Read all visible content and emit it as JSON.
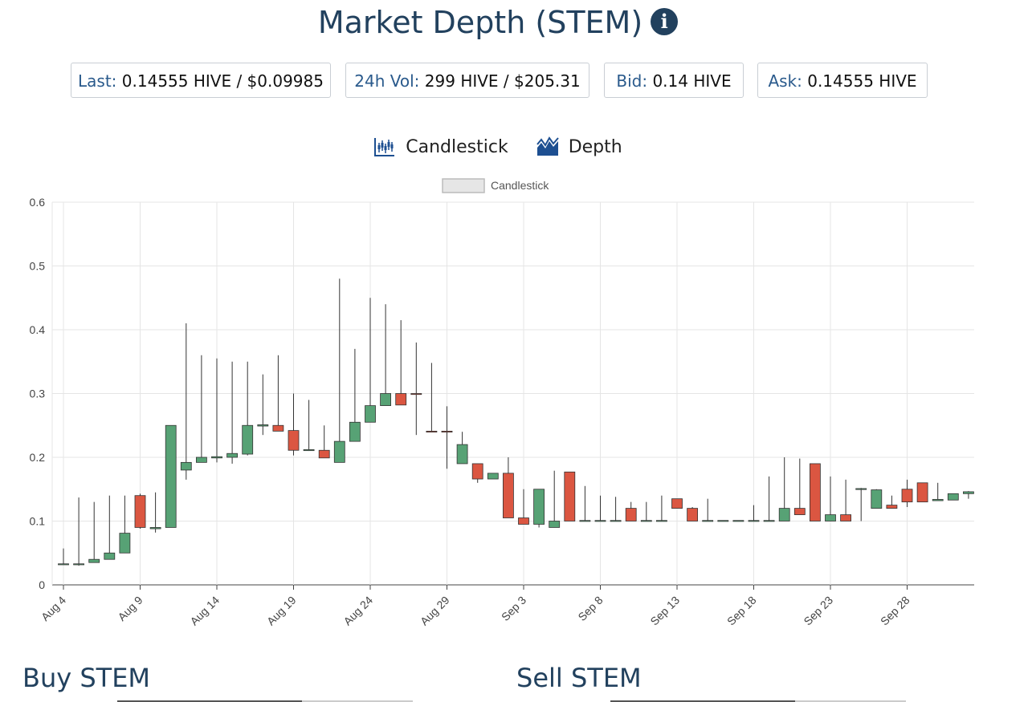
{
  "page": {
    "title": "Market Depth (STEM)",
    "info_icon": "info-circle-icon"
  },
  "stats": [
    {
      "key": "Last:",
      "value": "0.14555 HIVE / $0.09985"
    },
    {
      "key": "24h Vol:",
      "value": "299 HIVE / $205.31"
    },
    {
      "key": "Bid:",
      "value": "0.14 HIVE"
    },
    {
      "key": "Ask:",
      "value": "0.14555 HIVE"
    }
  ],
  "tabs": [
    {
      "label": "Candlestick",
      "icon": "candlestick-chart-icon"
    },
    {
      "label": "Depth",
      "icon": "depth-chart-icon"
    }
  ],
  "colors": {
    "up": "#57a275",
    "down": "#db5641",
    "grid": "#e5e5e5",
    "wick": "#333333"
  },
  "chart_data": {
    "type": "candlestick",
    "legend": "Candlestick",
    "legend_position": "top-center",
    "grid": true,
    "ylim": [
      0,
      0.6
    ],
    "yticks": [
      "0",
      "0.1",
      "0.2",
      "0.3",
      "0.4",
      "0.5",
      "0.6"
    ],
    "xticks": [
      "Aug 4",
      "Aug 9",
      "Aug 14",
      "Aug 19",
      "Aug 24",
      "Aug 29",
      "Sep 3",
      "Sep 8",
      "Sep 13",
      "Sep 18",
      "Sep 23",
      "Sep 28"
    ],
    "series": [
      {
        "values": [
          {
            "date": "Aug 4",
            "open": 0.032,
            "high": 0.057,
            "low": 0.032,
            "close": 0.033
          },
          {
            "date": "Aug 5",
            "open": 0.032,
            "high": 0.137,
            "low": 0.03,
            "close": 0.033
          },
          {
            "date": "Aug 6",
            "open": 0.035,
            "high": 0.13,
            "low": 0.035,
            "close": 0.04
          },
          {
            "date": "Aug 7",
            "open": 0.04,
            "high": 0.14,
            "low": 0.04,
            "close": 0.05
          },
          {
            "date": "Aug 8",
            "open": 0.05,
            "high": 0.14,
            "low": 0.05,
            "close": 0.081
          },
          {
            "date": "Aug 9",
            "open": 0.14,
            "high": 0.143,
            "low": 0.088,
            "close": 0.09
          },
          {
            "date": "Aug 10",
            "open": 0.088,
            "high": 0.145,
            "low": 0.082,
            "close": 0.09
          },
          {
            "date": "Aug 11",
            "open": 0.09,
            "high": 0.25,
            "low": 0.09,
            "close": 0.25
          },
          {
            "date": "Aug 12",
            "open": 0.18,
            "high": 0.41,
            "low": 0.165,
            "close": 0.192
          },
          {
            "date": "Aug 13",
            "open": 0.192,
            "high": 0.36,
            "low": 0.192,
            "close": 0.2
          },
          {
            "date": "Aug 14",
            "open": 0.199,
            "high": 0.355,
            "low": 0.192,
            "close": 0.201
          },
          {
            "date": "Aug 15",
            "open": 0.2,
            "high": 0.35,
            "low": 0.19,
            "close": 0.206
          },
          {
            "date": "Aug 16",
            "open": 0.205,
            "high": 0.35,
            "low": 0.203,
            "close": 0.25
          },
          {
            "date": "Aug 17",
            "open": 0.249,
            "high": 0.33,
            "low": 0.235,
            "close": 0.251
          },
          {
            "date": "Aug 18",
            "open": 0.25,
            "high": 0.36,
            "low": 0.241,
            "close": 0.241
          },
          {
            "date": "Aug 19",
            "open": 0.242,
            "high": 0.3,
            "low": 0.203,
            "close": 0.211
          },
          {
            "date": "Aug 20",
            "open": 0.211,
            "high": 0.29,
            "low": 0.21,
            "close": 0.212
          },
          {
            "date": "Aug 21",
            "open": 0.211,
            "high": 0.25,
            "low": 0.199,
            "close": 0.199
          },
          {
            "date": "Aug 22",
            "open": 0.192,
            "high": 0.48,
            "low": 0.192,
            "close": 0.225
          },
          {
            "date": "Aug 23",
            "open": 0.225,
            "high": 0.37,
            "low": 0.225,
            "close": 0.255
          },
          {
            "date": "Aug 24",
            "open": 0.255,
            "high": 0.45,
            "low": 0.255,
            "close": 0.281
          },
          {
            "date": "Aug 25",
            "open": 0.281,
            "high": 0.44,
            "low": 0.281,
            "close": 0.3
          },
          {
            "date": "Aug 26",
            "open": 0.3,
            "high": 0.415,
            "low": 0.282,
            "close": 0.282
          },
          {
            "date": "Aug 27",
            "open": 0.3,
            "high": 0.38,
            "low": 0.235,
            "close": 0.299
          },
          {
            "date": "Aug 28",
            "open": 0.241,
            "high": 0.348,
            "low": 0.24,
            "close": 0.24
          },
          {
            "date": "Aug 29",
            "open": 0.241,
            "high": 0.28,
            "low": 0.182,
            "close": 0.24
          },
          {
            "date": "Aug 30",
            "open": 0.19,
            "high": 0.24,
            "low": 0.19,
            "close": 0.22
          },
          {
            "date": "Aug 31",
            "open": 0.19,
            "high": 0.19,
            "low": 0.16,
            "close": 0.166
          },
          {
            "date": "Sep 1",
            "open": 0.166,
            "high": 0.175,
            "low": 0.166,
            "close": 0.175
          },
          {
            "date": "Sep 2",
            "open": 0.175,
            "high": 0.2,
            "low": 0.105,
            "close": 0.105
          },
          {
            "date": "Sep 3",
            "open": 0.105,
            "high": 0.15,
            "low": 0.095,
            "close": 0.095
          },
          {
            "date": "Sep 4",
            "open": 0.095,
            "high": 0.15,
            "low": 0.09,
            "close": 0.15
          },
          {
            "date": "Sep 5",
            "open": 0.09,
            "high": 0.179,
            "low": 0.09,
            "close": 0.1
          },
          {
            "date": "Sep 6",
            "open": 0.177,
            "high": 0.177,
            "low": 0.1,
            "close": 0.1
          },
          {
            "date": "Sep 7",
            "open": 0.1,
            "high": 0.155,
            "low": 0.1,
            "close": 0.101
          },
          {
            "date": "Sep 8",
            "open": 0.1,
            "high": 0.14,
            "low": 0.1,
            "close": 0.101
          },
          {
            "date": "Sep 9",
            "open": 0.1,
            "high": 0.138,
            "low": 0.1,
            "close": 0.101
          },
          {
            "date": "Sep 10",
            "open": 0.12,
            "high": 0.13,
            "low": 0.1,
            "close": 0.1
          },
          {
            "date": "Sep 11",
            "open": 0.1,
            "high": 0.13,
            "low": 0.1,
            "close": 0.101
          },
          {
            "date": "Sep 12",
            "open": 0.1,
            "high": 0.14,
            "low": 0.1,
            "close": 0.101
          },
          {
            "date": "Sep 13",
            "open": 0.135,
            "high": 0.135,
            "low": 0.12,
            "close": 0.12
          },
          {
            "date": "Sep 14",
            "open": 0.12,
            "high": 0.122,
            "low": 0.1,
            "close": 0.1
          },
          {
            "date": "Sep 15",
            "open": 0.1,
            "high": 0.135,
            "low": 0.1,
            "close": 0.101
          },
          {
            "date": "Sep 16",
            "open": 0.1,
            "high": 0.1,
            "low": 0.1,
            "close": 0.101
          },
          {
            "date": "Sep 17",
            "open": 0.1,
            "high": 0.1,
            "low": 0.1,
            "close": 0.101
          },
          {
            "date": "Sep 18",
            "open": 0.1,
            "high": 0.125,
            "low": 0.1,
            "close": 0.101
          },
          {
            "date": "Sep 19",
            "open": 0.1,
            "high": 0.17,
            "low": 0.1,
            "close": 0.101
          },
          {
            "date": "Sep 20",
            "open": 0.1,
            "high": 0.2,
            "low": 0.1,
            "close": 0.12
          },
          {
            "date": "Sep 21",
            "open": 0.12,
            "high": 0.198,
            "low": 0.11,
            "close": 0.11
          },
          {
            "date": "Sep 22",
            "open": 0.19,
            "high": 0.19,
            "low": 0.1,
            "close": 0.1
          },
          {
            "date": "Sep 23",
            "open": 0.1,
            "high": 0.17,
            "low": 0.1,
            "close": 0.11
          },
          {
            "date": "Sep 24",
            "open": 0.11,
            "high": 0.165,
            "low": 0.1,
            "close": 0.1
          },
          {
            "date": "Sep 25",
            "open": 0.15,
            "high": 0.152,
            "low": 0.1,
            "close": 0.151
          },
          {
            "date": "Sep 26",
            "open": 0.12,
            "high": 0.15,
            "low": 0.12,
            "close": 0.149
          },
          {
            "date": "Sep 27",
            "open": 0.125,
            "high": 0.14,
            "low": 0.12,
            "close": 0.12
          },
          {
            "date": "Sep 28",
            "open": 0.15,
            "high": 0.165,
            "low": 0.122,
            "close": 0.13
          },
          {
            "date": "Sep 29",
            "open": 0.16,
            "high": 0.16,
            "low": 0.13,
            "close": 0.13
          },
          {
            "date": "Sep 30",
            "open": 0.132,
            "high": 0.16,
            "low": 0.132,
            "close": 0.134
          },
          {
            "date": "Oct 1",
            "open": 0.133,
            "high": 0.143,
            "low": 0.133,
            "close": 0.143
          },
          {
            "date": "Oct 2",
            "open": 0.143,
            "high": 0.147,
            "low": 0.135,
            "close": 0.146
          }
        ]
      }
    ]
  },
  "sections": {
    "buy": "Buy STEM",
    "sell": "Sell STEM"
  }
}
